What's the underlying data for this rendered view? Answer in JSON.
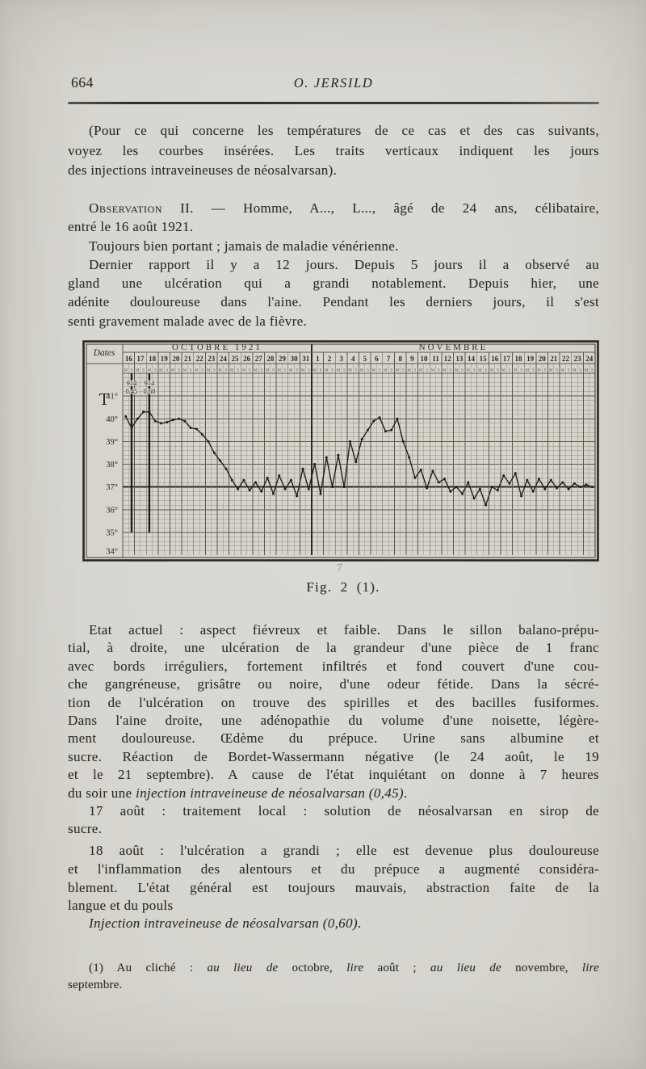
{
  "header": {
    "page_number": "664",
    "running_title": "O. JERSILD"
  },
  "paragraphs": {
    "intro": [
      "(Pour ce qui concerne les températures de ce cas et des cas suivants,",
      "voyez les courbes insérées. Les traits verticaux indiquent les jours",
      "des injections intraveineuses de néosalvarsan)."
    ],
    "observation": [
      [
        {
          "sc": "Observation"
        },
        " II. — Homme, A..., L..., âgé de 24 ans, célibataire,"
      ],
      [
        "entré le 16 août 1921."
      ]
    ],
    "p2": [
      "Toujours bien portant ; jamais de maladie vénérienne."
    ],
    "p3": [
      "Dernier rapport il y a 12 jours. Depuis 5 jours il a observé au",
      "gland une ulcération qui a grandi notablement. Depuis hier, une",
      "adénite douloureuse dans l'aine. Pendant les derniers jours, il s'est",
      "senti gravement malade avec de la fièvre."
    ],
    "etat": [
      "Etat actuel : aspect fiévreux et faible. Dans le sillon balano-prépu-",
      "tial, à droite, une ulcération de la grandeur d'une pièce de 1 franc",
      "avec bords irréguliers, fortement infiltrés et fond couvert d'une cou-",
      "che gangréneuse, grisâtre ou noire, d'une odeur fétide. Dans la sécré-",
      "tion de l'ulcération on trouve des spirilles et des bacilles fusiformes.",
      "Dans l'aine droite, une adénopathie du volume d'une noisette, légère-",
      "ment douloureuse. Œdème du prépuce. Urine sans albumine et",
      "sucre. Réaction de Bordet-Wassermann négative (le 24 août, le 19",
      "et le 21 septembre). A cause de l'état inquiétant on donne à 7 heures",
      [
        "du soir une ",
        {
          "i": "injection intraveineuse de néosalvarsan (0,45)"
        },
        "."
      ]
    ],
    "p17aout": [
      "17 août : traitement local : solution de néosalvarsan en sirop de",
      "sucre."
    ],
    "p18aout": [
      "18 août : l'ulcération a grandi ; elle est devenue plus douloureuse",
      "et l'inflammation des alentours et du prépuce a augmenté considéra-",
      "blement. L'état général est toujours mauvais, abstraction faite de la",
      "langue et du pouls"
    ],
    "p_injection": [
      [
        {
          "i": "Injection intraveineuse de néosalvarsan (0,60)"
        },
        "."
      ]
    ]
  },
  "figure": {
    "caption": "Fig. 2 (1).",
    "pencil_mark": "7"
  },
  "footnote": {
    "lines": [
      [
        "(1) Au cliché : ",
        {
          "i": "au lieu de"
        },
        " octobre, ",
        {
          "i": "lire"
        },
        " août ; ",
        {
          "i": "au lieu de"
        },
        " novembre, ",
        {
          "i": "lire"
        }
      ],
      [
        "septembre."
      ]
    ]
  },
  "chart_data": {
    "type": "line",
    "corner_label": "Dates",
    "y_axis_label": "T",
    "months": [
      {
        "label": "OCTOBRE 1921",
        "days": [
          16,
          17,
          18,
          19,
          20,
          21,
          22,
          23,
          24,
          25,
          26,
          27,
          28,
          29,
          30,
          31
        ]
      },
      {
        "label": "NOVEMBRE",
        "days": [
          1,
          2,
          3,
          4,
          5,
          6,
          7,
          8,
          9,
          10,
          11,
          12,
          13,
          14,
          15,
          16,
          17,
          18,
          19,
          20,
          21,
          22,
          23,
          24
        ]
      }
    ],
    "half_day_labels": [
      "M",
      "S"
    ],
    "y_ticks": [
      "41°",
      "40°",
      "39°",
      "38°",
      "37°",
      "36°",
      "35°",
      "34°"
    ],
    "ylim": [
      34,
      42
    ],
    "reference_line": 37,
    "grid": true,
    "injections": [
      {
        "subcol": 1.5,
        "label": "914",
        "amount": "0,45"
      },
      {
        "subcol": 4.5,
        "label": "914",
        "amount": "0,60"
      }
    ],
    "temperatures": {
      "unit": "°C",
      "halfdays_per_day": 2,
      "values": [
        40.1,
        39.6,
        40.0,
        40.3,
        40.3,
        39.9,
        39.8,
        39.85,
        39.95,
        40.0,
        39.9,
        39.6,
        39.55,
        39.3,
        39.0,
        38.5,
        38.15,
        37.8,
        37.3,
        36.9,
        37.3,
        36.85,
        37.2,
        36.8,
        37.4,
        36.7,
        37.5,
        36.9,
        37.3,
        36.6,
        37.8,
        36.9,
        38.0,
        36.7,
        38.3,
        37.0,
        38.4,
        37.0,
        39.0,
        38.1,
        39.1,
        39.5,
        39.9,
        40.05,
        39.45,
        39.5,
        40.0,
        39.0,
        38.3,
        37.4,
        37.75,
        36.95,
        37.7,
        37.2,
        37.35,
        36.8,
        37.0,
        36.7,
        37.2,
        36.5,
        36.9,
        36.2,
        37.0,
        36.85,
        37.5,
        37.15,
        37.6,
        36.6,
        37.3,
        36.8,
        37.35,
        36.9,
        37.3,
        36.95,
        37.2,
        36.9,
        37.15,
        37.0,
        37.1,
        37.0
      ]
    }
  }
}
